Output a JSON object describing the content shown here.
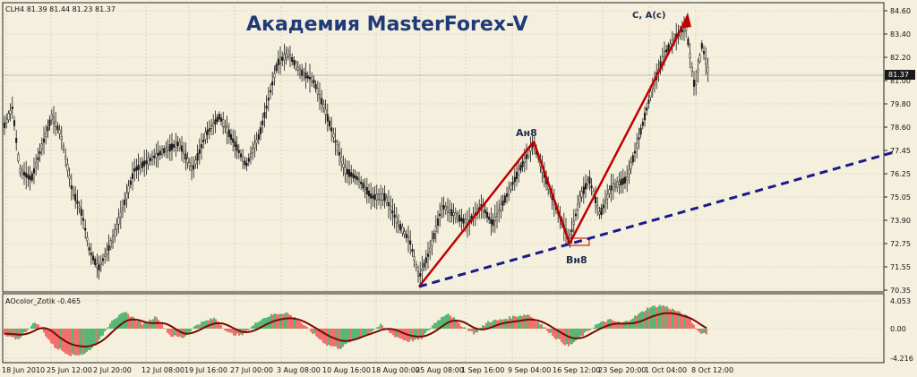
{
  "window": {
    "symbol_header": "CLH4  81.39 81.44 81.23 81.37",
    "watermark": "Академия MasterForex-V"
  },
  "price_axis": {
    "ticks": [
      "84.60",
      "83.40",
      "82.20",
      "81.00",
      "79.80",
      "78.60",
      "77.45",
      "76.25",
      "75.05",
      "73.90",
      "72.75",
      "71.55",
      "70.35"
    ],
    "current_price": "81.37"
  },
  "indicator": {
    "label": "AOcolor_Zotik -0.465",
    "ticks": [
      "4.053",
      "0.00",
      "-4.216"
    ]
  },
  "time_axis": {
    "labels": [
      "18 Jun 2010",
      "25 Jun 12:00",
      "2 Jul 20:00",
      "12 Jul 08:00",
      "19 Jul 16:00",
      "27 Jul 00:00",
      "3 Aug 08:00",
      "10 Aug 16:00",
      "18 Aug 00:00",
      "25 Aug 08:00",
      "1 Sep 16:00",
      "9 Sep 04:00",
      "16 Sep 12:00",
      "23 Sep 20:00",
      "1 Oct 04:00",
      "8 Oct 12:00"
    ]
  },
  "annotations": {
    "top_point": "Ан8",
    "bottom_point": "Вн8",
    "target": "C, A(c)"
  },
  "colors": {
    "background": "#f5f0dd",
    "grid": "#c8c0a8",
    "candles": "#1a1a1a",
    "wave_lines": "#c00000",
    "trend_line": "#1a1a8c",
    "ao_up": "#2eaa5a",
    "ao_down": "#f05050",
    "ao_slow_up": "#0a8a1a",
    "ao_slow_down": "#7a0a0a"
  }
}
